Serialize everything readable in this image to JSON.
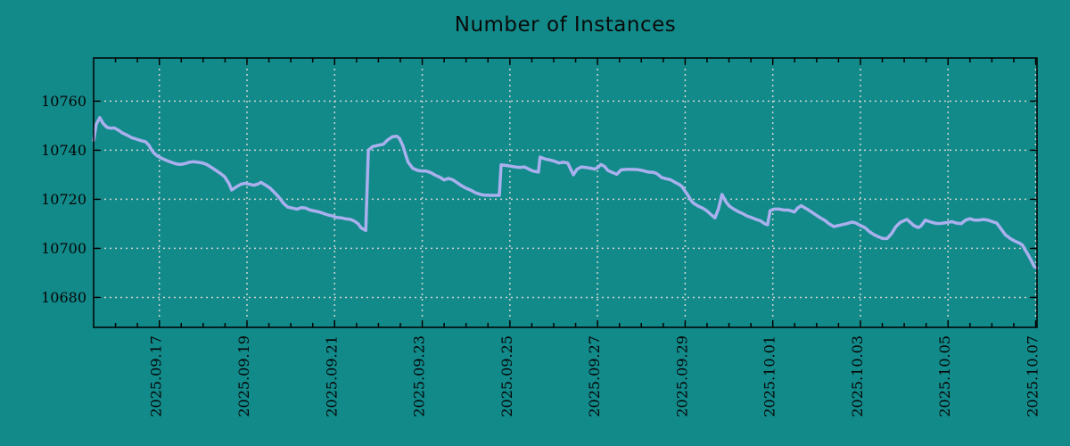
{
  "title": "Number of Instances",
  "colors": {
    "background": "#128a8a",
    "line": "#aab0ee",
    "grid": "#d2d2d2",
    "axis": "#000000",
    "text": "#050505"
  },
  "chart_data": {
    "type": "line",
    "title": "Number of Instances",
    "xlabel": "",
    "ylabel": "",
    "legend": "none",
    "grid": true,
    "grid_style": "dashed",
    "x_axis": {
      "unit": "days-since-2025.09.15-12:00",
      "min_days": 0,
      "max_days": 21.53,
      "minor_tick_interval_days": 0.5,
      "major_ticks": [
        {
          "t": 1.5,
          "label": "2025.09.17"
        },
        {
          "t": 3.5,
          "label": "2025.09.19"
        },
        {
          "t": 5.5,
          "label": "2025.09.21"
        },
        {
          "t": 7.5,
          "label": "2025.09.23"
        },
        {
          "t": 9.5,
          "label": "2025.09.25"
        },
        {
          "t": 11.5,
          "label": "2025.09.27"
        },
        {
          "t": 13.5,
          "label": "2025.09.29"
        },
        {
          "t": 15.5,
          "label": "2025.10.01"
        },
        {
          "t": 17.5,
          "label": "2025.10.03"
        },
        {
          "t": 19.5,
          "label": "2025.10.05"
        },
        {
          "t": 21.5,
          "label": "2025.10.07"
        }
      ]
    },
    "y_axis": {
      "min": 10667.8,
      "max": 10777.6,
      "ticks": [
        {
          "v": 10680,
          "label": "10680"
        },
        {
          "v": 10700,
          "label": "10700"
        },
        {
          "v": 10720,
          "label": "10720"
        },
        {
          "v": 10740,
          "label": "10740"
        },
        {
          "v": 10760,
          "label": "10760"
        }
      ]
    },
    "series": [
      {
        "name": "instances",
        "points": [
          [
            0,
            10744.0
          ],
          [
            0.06,
            10750.5
          ],
          [
            0.14,
            10753.3
          ],
          [
            0.22,
            10750.8
          ],
          [
            0.31,
            10749.3
          ],
          [
            0.39,
            10749.0
          ],
          [
            0.47,
            10749.1
          ],
          [
            0.57,
            10748.1
          ],
          [
            0.67,
            10746.9
          ],
          [
            0.77,
            10746.1
          ],
          [
            0.87,
            10745.1
          ],
          [
            0.98,
            10744.5
          ],
          [
            1.08,
            10743.9
          ],
          [
            1.18,
            10743.5
          ],
          [
            1.26,
            10742.1
          ],
          [
            1.32,
            10740.2
          ],
          [
            1.38,
            10738.8
          ],
          [
            1.46,
            10737.6
          ],
          [
            1.57,
            10736.6
          ],
          [
            1.67,
            10735.8
          ],
          [
            1.77,
            10735.1
          ],
          [
            1.87,
            10734.5
          ],
          [
            1.97,
            10734.2
          ],
          [
            2.08,
            10734.5
          ],
          [
            2.18,
            10735.1
          ],
          [
            2.28,
            10735.3
          ],
          [
            2.38,
            10735.1
          ],
          [
            2.48,
            10734.8
          ],
          [
            2.58,
            10734.2
          ],
          [
            2.69,
            10733.0
          ],
          [
            2.79,
            10731.8
          ],
          [
            2.89,
            10730.6
          ],
          [
            2.99,
            10729.2
          ],
          [
            3.09,
            10726.4
          ],
          [
            3.15,
            10723.8
          ],
          [
            3.26,
            10725.1
          ],
          [
            3.36,
            10726.1
          ],
          [
            3.46,
            10726.5
          ],
          [
            3.56,
            10726.1
          ],
          [
            3.66,
            10725.7
          ],
          [
            3.76,
            10726.3
          ],
          [
            3.82,
            10726.9
          ],
          [
            3.93,
            10725.7
          ],
          [
            4.03,
            10724.5
          ],
          [
            4.13,
            10722.7
          ],
          [
            4.23,
            10720.8
          ],
          [
            4.33,
            10718.4
          ],
          [
            4.43,
            10716.8
          ],
          [
            4.54,
            10716.4
          ],
          [
            4.64,
            10716.0
          ],
          [
            4.74,
            10716.6
          ],
          [
            4.84,
            10716.4
          ],
          [
            4.94,
            10715.6
          ],
          [
            5.05,
            10715.2
          ],
          [
            5.15,
            10714.8
          ],
          [
            5.25,
            10714.2
          ],
          [
            5.35,
            10713.6
          ],
          [
            5.45,
            10713.2
          ],
          [
            5.55,
            10712.6
          ],
          [
            5.66,
            10712.4
          ],
          [
            5.76,
            10712.0
          ],
          [
            5.86,
            10711.8
          ],
          [
            5.94,
            10711.2
          ],
          [
            6.04,
            10710.0
          ],
          [
            6.1,
            10708.4
          ],
          [
            6.21,
            10707.3
          ],
          [
            6.27,
            10740.0
          ],
          [
            6.37,
            10741.5
          ],
          [
            6.49,
            10742.0
          ],
          [
            6.61,
            10742.4
          ],
          [
            6.71,
            10744.2
          ],
          [
            6.82,
            10745.5
          ],
          [
            6.92,
            10745.7
          ],
          [
            6.98,
            10744.8
          ],
          [
            7.06,
            10741.8
          ],
          [
            7.12,
            10738.2
          ],
          [
            7.18,
            10735.1
          ],
          [
            7.28,
            10732.7
          ],
          [
            7.39,
            10731.8
          ],
          [
            7.49,
            10731.5
          ],
          [
            7.59,
            10731.5
          ],
          [
            7.69,
            10730.9
          ],
          [
            7.79,
            10729.9
          ],
          [
            7.89,
            10729.1
          ],
          [
            8.0,
            10727.9
          ],
          [
            8.1,
            10728.5
          ],
          [
            8.2,
            10727.9
          ],
          [
            8.3,
            10726.7
          ],
          [
            8.4,
            10725.5
          ],
          [
            8.5,
            10724.5
          ],
          [
            8.61,
            10723.7
          ],
          [
            8.71,
            10722.7
          ],
          [
            8.81,
            10722.1
          ],
          [
            8.91,
            10721.7
          ],
          [
            9.11,
            10721.6
          ],
          [
            9.26,
            10721.6
          ],
          [
            9.3,
            10734.0
          ],
          [
            9.42,
            10733.8
          ],
          [
            9.52,
            10733.5
          ],
          [
            9.62,
            10733.2
          ],
          [
            9.73,
            10733.0
          ],
          [
            9.83,
            10733.2
          ],
          [
            9.93,
            10732.3
          ],
          [
            10.03,
            10731.5
          ],
          [
            10.15,
            10731.1
          ],
          [
            10.19,
            10737.2
          ],
          [
            10.31,
            10736.4
          ],
          [
            10.42,
            10736.0
          ],
          [
            10.52,
            10735.5
          ],
          [
            10.62,
            10734.8
          ],
          [
            10.72,
            10735.1
          ],
          [
            10.82,
            10734.8
          ],
          [
            10.88,
            10732.5
          ],
          [
            10.95,
            10730.0
          ],
          [
            11.03,
            10732.2
          ],
          [
            11.13,
            10733.2
          ],
          [
            11.23,
            10733.0
          ],
          [
            11.33,
            10732.7
          ],
          [
            11.43,
            10732.3
          ],
          [
            11.51,
            10733.0
          ],
          [
            11.58,
            10734.2
          ],
          [
            11.66,
            10733.4
          ],
          [
            11.74,
            10731.7
          ],
          [
            11.84,
            10730.9
          ],
          [
            11.94,
            10730.2
          ],
          [
            12.04,
            10732.0
          ],
          [
            12.17,
            10732.2
          ],
          [
            12.29,
            10732.2
          ],
          [
            12.41,
            10732.1
          ],
          [
            12.53,
            10731.7
          ],
          [
            12.66,
            10731.1
          ],
          [
            12.78,
            10731.0
          ],
          [
            12.86,
            10730.4
          ],
          [
            12.96,
            10728.9
          ],
          [
            13.06,
            10728.4
          ],
          [
            13.16,
            10728.0
          ],
          [
            13.27,
            10726.9
          ],
          [
            13.37,
            10726.0
          ],
          [
            13.43,
            10725.1
          ],
          [
            13.51,
            10723.0
          ],
          [
            13.57,
            10721.5
          ],
          [
            13.63,
            10719.6
          ],
          [
            13.69,
            10718.4
          ],
          [
            13.8,
            10717.2
          ],
          [
            13.9,
            10716.4
          ],
          [
            14.0,
            10715.2
          ],
          [
            14.1,
            10713.6
          ],
          [
            14.18,
            10712.4
          ],
          [
            14.26,
            10716.0
          ],
          [
            14.34,
            10722.0
          ],
          [
            14.43,
            10719.0
          ],
          [
            14.51,
            10717.2
          ],
          [
            14.61,
            10716.0
          ],
          [
            14.71,
            10715.0
          ],
          [
            14.81,
            10714.2
          ],
          [
            14.91,
            10713.2
          ],
          [
            15.01,
            10712.6
          ],
          [
            15.12,
            10711.8
          ],
          [
            15.22,
            10711.2
          ],
          [
            15.32,
            10710.0
          ],
          [
            15.38,
            10709.6
          ],
          [
            15.44,
            10715.4
          ],
          [
            15.54,
            10716.0
          ],
          [
            15.65,
            10716.0
          ],
          [
            15.75,
            10715.6
          ],
          [
            15.85,
            10715.6
          ],
          [
            15.93,
            10715.2
          ],
          [
            15.99,
            10714.8
          ],
          [
            16.07,
            10716.5
          ],
          [
            16.15,
            10717.4
          ],
          [
            16.28,
            10716.0
          ],
          [
            16.38,
            10714.9
          ],
          [
            16.48,
            10713.7
          ],
          [
            16.58,
            10712.5
          ],
          [
            16.68,
            10711.5
          ],
          [
            16.78,
            10710.1
          ],
          [
            16.89,
            10708.9
          ],
          [
            16.99,
            10709.3
          ],
          [
            17.09,
            10709.7
          ],
          [
            17.19,
            10710.1
          ],
          [
            17.31,
            10710.7
          ],
          [
            17.4,
            10710.3
          ],
          [
            17.5,
            10709.3
          ],
          [
            17.6,
            10708.5
          ],
          [
            17.7,
            10706.9
          ],
          [
            17.8,
            10705.7
          ],
          [
            17.9,
            10704.8
          ],
          [
            18.01,
            10704.0
          ],
          [
            18.11,
            10704.0
          ],
          [
            18.21,
            10706.0
          ],
          [
            18.31,
            10708.9
          ],
          [
            18.41,
            10710.6
          ],
          [
            18.52,
            10711.5
          ],
          [
            18.56,
            10711.8
          ],
          [
            18.62,
            10710.9
          ],
          [
            18.72,
            10709.3
          ],
          [
            18.82,
            10708.5
          ],
          [
            18.88,
            10709.1
          ],
          [
            18.98,
            10711.5
          ],
          [
            19.08,
            10710.9
          ],
          [
            19.19,
            10710.3
          ],
          [
            19.29,
            10710.1
          ],
          [
            19.39,
            10710.3
          ],
          [
            19.49,
            10710.6
          ],
          [
            19.59,
            10710.9
          ],
          [
            19.69,
            10710.3
          ],
          [
            19.8,
            10710.1
          ],
          [
            19.9,
            10711.5
          ],
          [
            20.0,
            10712.1
          ],
          [
            20.1,
            10711.5
          ],
          [
            20.2,
            10711.5
          ],
          [
            20.31,
            10711.8
          ],
          [
            20.41,
            10711.5
          ],
          [
            20.51,
            10710.9
          ],
          [
            20.61,
            10710.3
          ],
          [
            20.71,
            10707.9
          ],
          [
            20.81,
            10705.5
          ],
          [
            20.92,
            10704.0
          ],
          [
            21.02,
            10703.0
          ],
          [
            21.12,
            10702.2
          ],
          [
            21.2,
            10701.3
          ],
          [
            21.26,
            10699.4
          ],
          [
            21.32,
            10697.6
          ],
          [
            21.4,
            10695.0
          ],
          [
            21.47,
            10692.5
          ],
          [
            21.53,
            10692.0
          ]
        ]
      }
    ]
  }
}
